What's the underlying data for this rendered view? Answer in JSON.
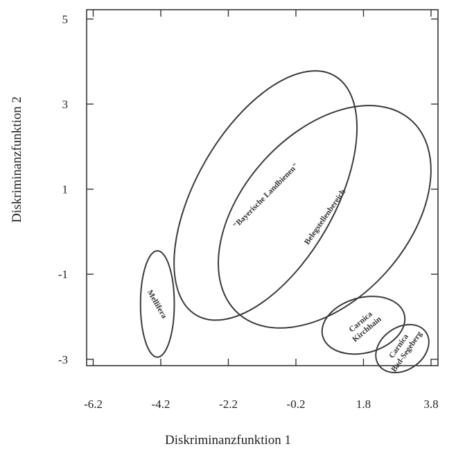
{
  "chart_data": {
    "type": "scatter",
    "title": "",
    "xlabel": "Diskriminanzfunktion 1",
    "ylabel": "Diskriminanzfunktion 2",
    "xlim": [
      -6.2,
      4.2
    ],
    "ylim": [
      -3.2,
      5.2
    ],
    "x_ticks": [
      -6.2,
      -4.2,
      -2.2,
      -0.2,
      1.8,
      3.8
    ],
    "x_tick_labels": [
      "-6.2",
      "-4.2",
      "-2.2",
      "-0.2",
      "1.8",
      "3.8"
    ],
    "y_ticks": [
      5,
      3,
      1,
      -1,
      -3
    ],
    "y_tick_labels": [
      "5",
      "3",
      "1",
      "-1",
      "-3"
    ],
    "grid": false,
    "legend": "none",
    "groups": [
      {
        "label": "Mellifera",
        "cx": -4.3,
        "cy": -1.7,
        "rx": 0.5,
        "ry": 1.25,
        "angle": 0,
        "label_rotation": 60
      },
      {
        "label": "\"Bayerische Landbienen\"",
        "cx": -1.1,
        "cy": 0.85,
        "rx": 2.05,
        "ry": 3.25,
        "angle": 30,
        "label_rotation": -45
      },
      {
        "label": "Belegstellenbereich",
        "cx": 0.65,
        "cy": 0.35,
        "rx": 2.45,
        "ry": 3.05,
        "angle": 42,
        "label_rotation": -55
      },
      {
        "label": "Carnica\nKirchhain",
        "cx": 1.8,
        "cy": -2.2,
        "rx": 1.25,
        "ry": 0.65,
        "angle": -15,
        "label_rotation": -40
      },
      {
        "label": "Carnica\nBad-Segeberg",
        "cx": 2.95,
        "cy": -2.75,
        "rx": 0.85,
        "ry": 0.5,
        "angle": -35,
        "label_rotation": -55
      }
    ]
  }
}
